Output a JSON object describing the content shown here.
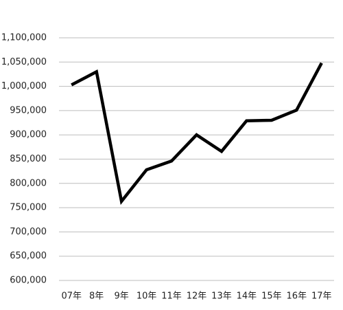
{
  "chart_data": {
    "type": "line",
    "categories": [
      "07年",
      "8年",
      "9年",
      "10年",
      "11年",
      "12年",
      "13年",
      "14年",
      "15年",
      "16年",
      "17年"
    ],
    "values": [
      1003000,
      1030000,
      763000,
      828000,
      846000,
      900000,
      866000,
      929000,
      930000,
      951000,
      1048000
    ],
    "color": "#000000",
    "ylim": [
      600000,
      1100000
    ],
    "yticks": [
      {
        "value": 600000,
        "label": "600,000"
      },
      {
        "value": 650000,
        "label": "650,000"
      },
      {
        "value": 700000,
        "label": "700,000"
      },
      {
        "value": 750000,
        "label": "750,000"
      },
      {
        "value": 800000,
        "label": "800,000"
      },
      {
        "value": 850000,
        "label": "850,000"
      },
      {
        "value": 900000,
        "label": "900,000"
      },
      {
        "value": 950000,
        "label": "950,000"
      },
      {
        "value": 1000000,
        "label": "1,000,000"
      },
      {
        "value": 1050000,
        "label": "1,050,000"
      },
      {
        "value": 1100000,
        "label": "1,100,000"
      }
    ],
    "grid": true
  }
}
